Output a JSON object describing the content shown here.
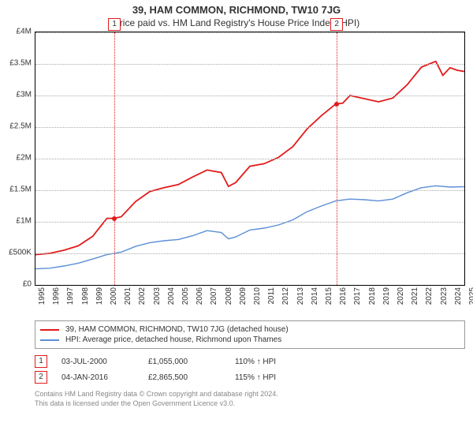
{
  "title": "39, HAM COMMON, RICHMOND, TW10 7JG",
  "subtitle": "Price paid vs. HM Land Registry's House Price Index (HPI)",
  "chart": {
    "type": "line",
    "background_color": "#ffffff",
    "grid_color": "#aaaaaa",
    "border_color": "#000000",
    "ylim": [
      0,
      4000000
    ],
    "ytick_step": 500000,
    "y_labels": [
      "£0",
      "£500K",
      "£1M",
      "£1.5M",
      "£2M",
      "£2.5M",
      "£3M",
      "£3.5M",
      "£4M"
    ],
    "xlim": [
      1995,
      2025
    ],
    "x_labels": [
      "1995",
      "1996",
      "1997",
      "1998",
      "1999",
      "2000",
      "2001",
      "2002",
      "2003",
      "2004",
      "2005",
      "2006",
      "2007",
      "2008",
      "2009",
      "2010",
      "2011",
      "2012",
      "2013",
      "2014",
      "2015",
      "2016",
      "2017",
      "2018",
      "2019",
      "2020",
      "2021",
      "2022",
      "2023",
      "2024",
      "2025"
    ],
    "label_fontsize": 10,
    "series": [
      {
        "name": "39, HAM COMMON, RICHMOND, TW10 7JG (detached house)",
        "color": "#e21b1b",
        "width": 1.8,
        "points": [
          [
            1995,
            480000
          ],
          [
            1996,
            500000
          ],
          [
            1997,
            550000
          ],
          [
            1998,
            620000
          ],
          [
            1999,
            770000
          ],
          [
            2000,
            1055000
          ],
          [
            2000.5,
            1055000
          ],
          [
            2001,
            1080000
          ],
          [
            2002,
            1320000
          ],
          [
            2003,
            1480000
          ],
          [
            2004,
            1540000
          ],
          [
            2005,
            1590000
          ],
          [
            2006,
            1710000
          ],
          [
            2007,
            1820000
          ],
          [
            2008,
            1780000
          ],
          [
            2008.5,
            1560000
          ],
          [
            2009,
            1620000
          ],
          [
            2010,
            1880000
          ],
          [
            2011,
            1920000
          ],
          [
            2012,
            2020000
          ],
          [
            2013,
            2190000
          ],
          [
            2014,
            2470000
          ],
          [
            2015,
            2680000
          ],
          [
            2016,
            2865500
          ],
          [
            2016.5,
            2880000
          ],
          [
            2017,
            3000000
          ],
          [
            2018,
            2950000
          ],
          [
            2019,
            2900000
          ],
          [
            2020,
            2960000
          ],
          [
            2021,
            3170000
          ],
          [
            2022,
            3450000
          ],
          [
            2023,
            3540000
          ],
          [
            2023.5,
            3320000
          ],
          [
            2024,
            3440000
          ],
          [
            2024.5,
            3400000
          ],
          [
            2025,
            3380000
          ]
        ]
      },
      {
        "name": "HPI: Average price, detached house, Richmond upon Thames",
        "color": "#5b8fd6",
        "width": 1.4,
        "points": [
          [
            1995,
            255000
          ],
          [
            1996,
            265000
          ],
          [
            1997,
            300000
          ],
          [
            1998,
            345000
          ],
          [
            1999,
            410000
          ],
          [
            2000,
            480000
          ],
          [
            2001,
            520000
          ],
          [
            2002,
            610000
          ],
          [
            2003,
            670000
          ],
          [
            2004,
            700000
          ],
          [
            2005,
            720000
          ],
          [
            2006,
            780000
          ],
          [
            2007,
            860000
          ],
          [
            2008,
            830000
          ],
          [
            2008.5,
            730000
          ],
          [
            2009,
            760000
          ],
          [
            2010,
            870000
          ],
          [
            2011,
            900000
          ],
          [
            2012,
            950000
          ],
          [
            2013,
            1030000
          ],
          [
            2014,
            1160000
          ],
          [
            2015,
            1250000
          ],
          [
            2016,
            1330000
          ],
          [
            2017,
            1360000
          ],
          [
            2018,
            1350000
          ],
          [
            2019,
            1330000
          ],
          [
            2020,
            1360000
          ],
          [
            2021,
            1460000
          ],
          [
            2022,
            1540000
          ],
          [
            2023,
            1570000
          ],
          [
            2024,
            1550000
          ],
          [
            2025,
            1555000
          ]
        ]
      }
    ],
    "markers": [
      {
        "label": "1",
        "x": 2000.5,
        "y": 1055000,
        "color": "#e21b1b"
      },
      {
        "label": "2",
        "x": 2016.0,
        "y": 2865500,
        "color": "#e21b1b"
      }
    ]
  },
  "legend": {
    "items": [
      {
        "color": "#e21b1b",
        "label": "39, HAM COMMON, RICHMOND, TW10 7JG (detached house)"
      },
      {
        "color": "#5b8fd6",
        "label": "HPI: Average price, detached house, Richmond upon Thames"
      }
    ]
  },
  "footer": {
    "rows": [
      {
        "box": "1",
        "box_color": "#e21b1b",
        "date": "03-JUL-2000",
        "price": "£1,055,000",
        "pct": "110% ↑ HPI"
      },
      {
        "box": "2",
        "box_color": "#e21b1b",
        "date": "04-JAN-2016",
        "price": "£2,865,500",
        "pct": "115% ↑ HPI"
      }
    ]
  },
  "attribution": {
    "line1": "Contains HM Land Registry data © Crown copyright and database right 2024.",
    "line2": "This data is licensed under the Open Government Licence v3.0."
  }
}
